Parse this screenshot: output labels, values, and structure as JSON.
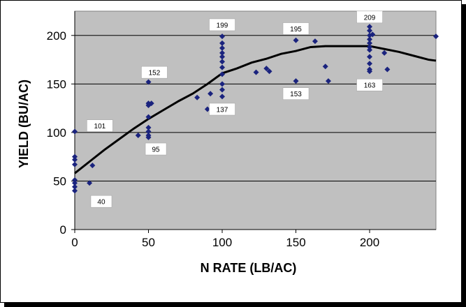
{
  "chart_data": {
    "type": "scatter",
    "title": "",
    "xlabel": "N RATE (LB/AC)",
    "ylabel": "YIELD (BU/AC)",
    "xlim": [
      0,
      245
    ],
    "ylim": [
      0,
      225
    ],
    "xticks": [
      0,
      50,
      100,
      150,
      200
    ],
    "yticks": [
      0,
      50,
      100,
      150,
      200
    ],
    "grid": true,
    "colors": {
      "points": "#1a237e",
      "curve": "#000000",
      "plot_background": "#c0c0c0",
      "gridline": "#000000"
    },
    "series": [
      {
        "type": "scatter",
        "points": [
          [
            0,
            101
          ],
          [
            0,
            75
          ],
          [
            0,
            72
          ],
          [
            0,
            67
          ],
          [
            0,
            51
          ],
          [
            0,
            48
          ],
          [
            0,
            44
          ],
          [
            0,
            40
          ],
          [
            10,
            48
          ],
          [
            12,
            66
          ],
          [
            43,
            97
          ],
          [
            50,
            152
          ],
          [
            50,
            130
          ],
          [
            50,
            128
          ],
          [
            50,
            116
          ],
          [
            50,
            105
          ],
          [
            50,
            101
          ],
          [
            50,
            97
          ],
          [
            50,
            95
          ],
          [
            52,
            130
          ],
          [
            83,
            136
          ],
          [
            90,
            124
          ],
          [
            92,
            140
          ],
          [
            100,
            199
          ],
          [
            100,
            192
          ],
          [
            100,
            187
          ],
          [
            100,
            182
          ],
          [
            100,
            178
          ],
          [
            100,
            173
          ],
          [
            100,
            167
          ],
          [
            100,
            160
          ],
          [
            100,
            150
          ],
          [
            100,
            144
          ],
          [
            100,
            137
          ],
          [
            123,
            162
          ],
          [
            130,
            166
          ],
          [
            132,
            163
          ],
          [
            150,
            195
          ],
          [
            150,
            153
          ],
          [
            163,
            194
          ],
          [
            170,
            168
          ],
          [
            172,
            153
          ],
          [
            200,
            209
          ],
          [
            200,
            205
          ],
          [
            200,
            200
          ],
          [
            200,
            196
          ],
          [
            200,
            192
          ],
          [
            200,
            188
          ],
          [
            200,
            185
          ],
          [
            200,
            178
          ],
          [
            200,
            171
          ],
          [
            200,
            165
          ],
          [
            200,
            163
          ],
          [
            202,
            201
          ],
          [
            210,
            182
          ],
          [
            212,
            165
          ],
          [
            245,
            199
          ]
        ]
      },
      {
        "type": "line",
        "points": [
          [
            0,
            58
          ],
          [
            10,
            70
          ],
          [
            20,
            82
          ],
          [
            30,
            93
          ],
          [
            40,
            104
          ],
          [
            50,
            114
          ],
          [
            60,
            123
          ],
          [
            70,
            132
          ],
          [
            80,
            140
          ],
          [
            90,
            150
          ],
          [
            100,
            161
          ],
          [
            110,
            166
          ],
          [
            120,
            172
          ],
          [
            130,
            176
          ],
          [
            140,
            181
          ],
          [
            150,
            184
          ],
          [
            160,
            188
          ],
          [
            170,
            189
          ],
          [
            180,
            189
          ],
          [
            190,
            189
          ],
          [
            200,
            189
          ],
          [
            210,
            186
          ],
          [
            220,
            183
          ],
          [
            230,
            179
          ],
          [
            240,
            175
          ],
          [
            245,
            174
          ]
        ]
      }
    ],
    "annotations": [
      {
        "text": "199",
        "x": 100,
        "y": 211
      },
      {
        "text": "195",
        "x": 150,
        "y": 207
      },
      {
        "text": "209",
        "x": 200,
        "y": 219
      },
      {
        "text": "152",
        "x": 54,
        "y": 162
      },
      {
        "text": "137",
        "x": 100,
        "y": 124
      },
      {
        "text": "153",
        "x": 150,
        "y": 140
      },
      {
        "text": "163",
        "x": 200,
        "y": 149
      },
      {
        "text": "101",
        "x": 17,
        "y": 107
      },
      {
        "text": "95",
        "x": 55,
        "y": 83
      },
      {
        "text": "40",
        "x": 18,
        "y": 29
      }
    ]
  }
}
